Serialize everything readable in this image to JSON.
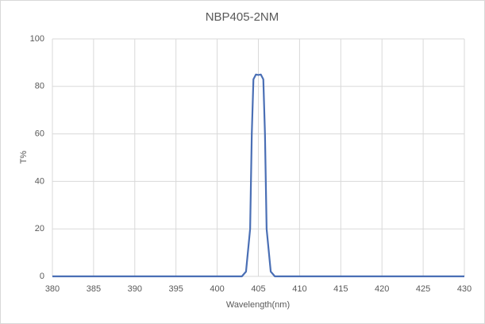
{
  "chart_data": {
    "type": "line",
    "title": "NBP405-2NM",
    "x_label": "Wavelength(nm)",
    "y_label": "T%",
    "x": [
      380,
      403,
      403.5,
      404,
      404.2,
      404.4,
      404.7,
      405,
      405.3,
      405.6,
      405.8,
      406,
      406.5,
      407,
      430
    ],
    "series": [
      {
        "name": "T%",
        "color": "#4a6fb5",
        "values": [
          0,
          0,
          2,
          20,
          60,
          83,
          85,
          84.8,
          85,
          83,
          60,
          20,
          2,
          0,
          0
        ]
      }
    ],
    "xlim": [
      380,
      430
    ],
    "xticks": [
      380,
      385,
      390,
      395,
      400,
      405,
      410,
      415,
      420,
      425,
      430
    ],
    "ylim": [
      0,
      100
    ],
    "yticks": [
      0,
      20,
      40,
      60,
      80,
      100
    ],
    "grid": true
  }
}
